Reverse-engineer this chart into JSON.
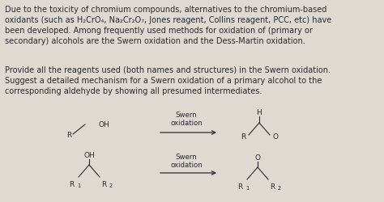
{
  "background_color": "#dedad2",
  "fig_width": 4.74,
  "fig_height": 2.51,
  "dpi": 100,
  "para1": "Due to the toxicity of chromium compounds, alternatives to the chromium-based\noxidants (such as H₂CrO₄, Na₂Cr₂O₇, Jones reagent, Collins reagent, PCC, etc) have\nbeen developed. Among frequently used methods for oxidation of (primary or\nsecondary) alcohols are the Swern oxidation and the Dess-Martin oxidation.",
  "para2": "Provide all the reagents used (both names and structures) in the Swern oxidation.\nSuggest a detailed mechanism for a Swern oxidation of a primary alcohol to the\ncorresponding aldehyde by showing all presumed intermediates.",
  "swern1": "Swern\noxidation",
  "swern2": "Swern\noxidation",
  "text_color": "#2a2a2a",
  "line_color": "#2a2a2a",
  "fontsize_body": 7.0,
  "fontsize_chem": 6.5,
  "fontsize_sub": 4.8
}
